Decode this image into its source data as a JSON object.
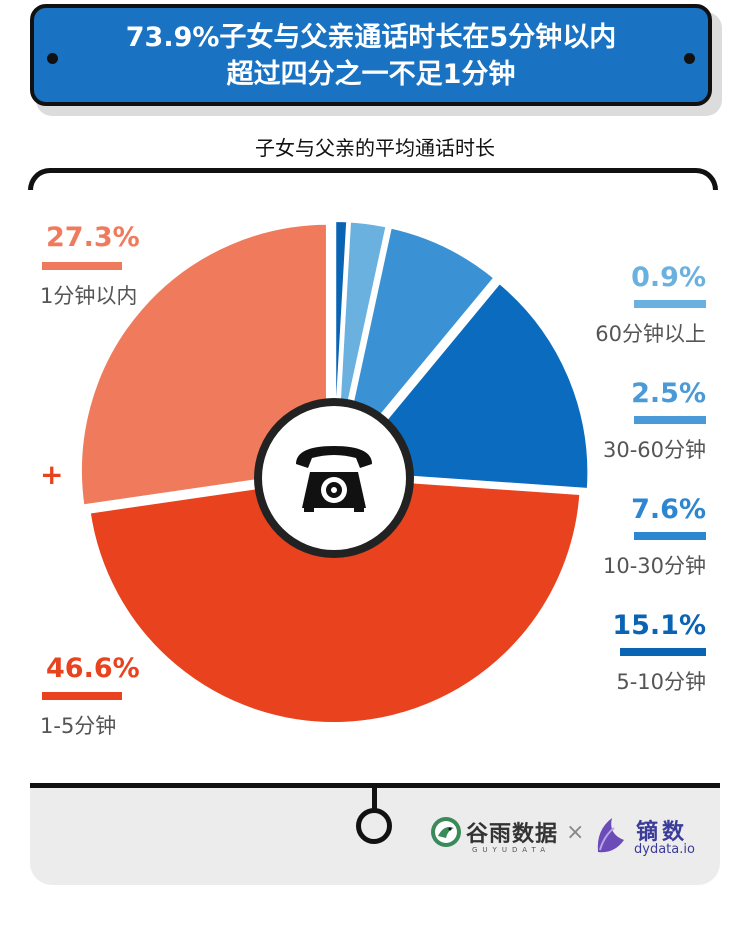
{
  "header": {
    "title_line1": "73.9%子女与父亲通话时长在5分钟以内",
    "title_line2": "超过四分之一不足1分钟",
    "bg_color": "#1a73c2"
  },
  "chart_data": {
    "type": "pie",
    "title": "子女与父亲的平均通话时长",
    "center_icon": "telephone-icon",
    "slices": [
      {
        "label": "60分钟以上",
        "value": 0.9,
        "display": "0.9%",
        "color": "#0a64b4",
        "label_color": "#6ab1e0"
      },
      {
        "label": "30-60分钟",
        "value": 2.5,
        "display": "2.5%",
        "color": "#6ab1e0",
        "label_color": "#4a9ad8"
      },
      {
        "label": "10-30分钟",
        "value": 7.6,
        "display": "7.6%",
        "color": "#3a91d4",
        "label_color": "#2d86d0"
      },
      {
        "label": "5-10分钟",
        "value": 15.1,
        "display": "15.1%",
        "color": "#0a6bbf",
        "label_color": "#0a64b4"
      },
      {
        "label": "1-5分钟",
        "value": 46.6,
        "display": "46.6%",
        "color": "#e8431e",
        "label_color": "#e8431e"
      },
      {
        "label": "1分钟以内",
        "value": 27.3,
        "display": "27.3%",
        "color": "#f07b5c",
        "label_color": "#f07b5c"
      }
    ]
  },
  "extras": {
    "plus_sign": "+",
    "times_sign": "×"
  },
  "footer": {
    "logo1_name": "谷雨数据",
    "logo1_sub": "GUYUDATA",
    "logo2_name": "镝数",
    "logo2_sub": "dydata.io"
  }
}
